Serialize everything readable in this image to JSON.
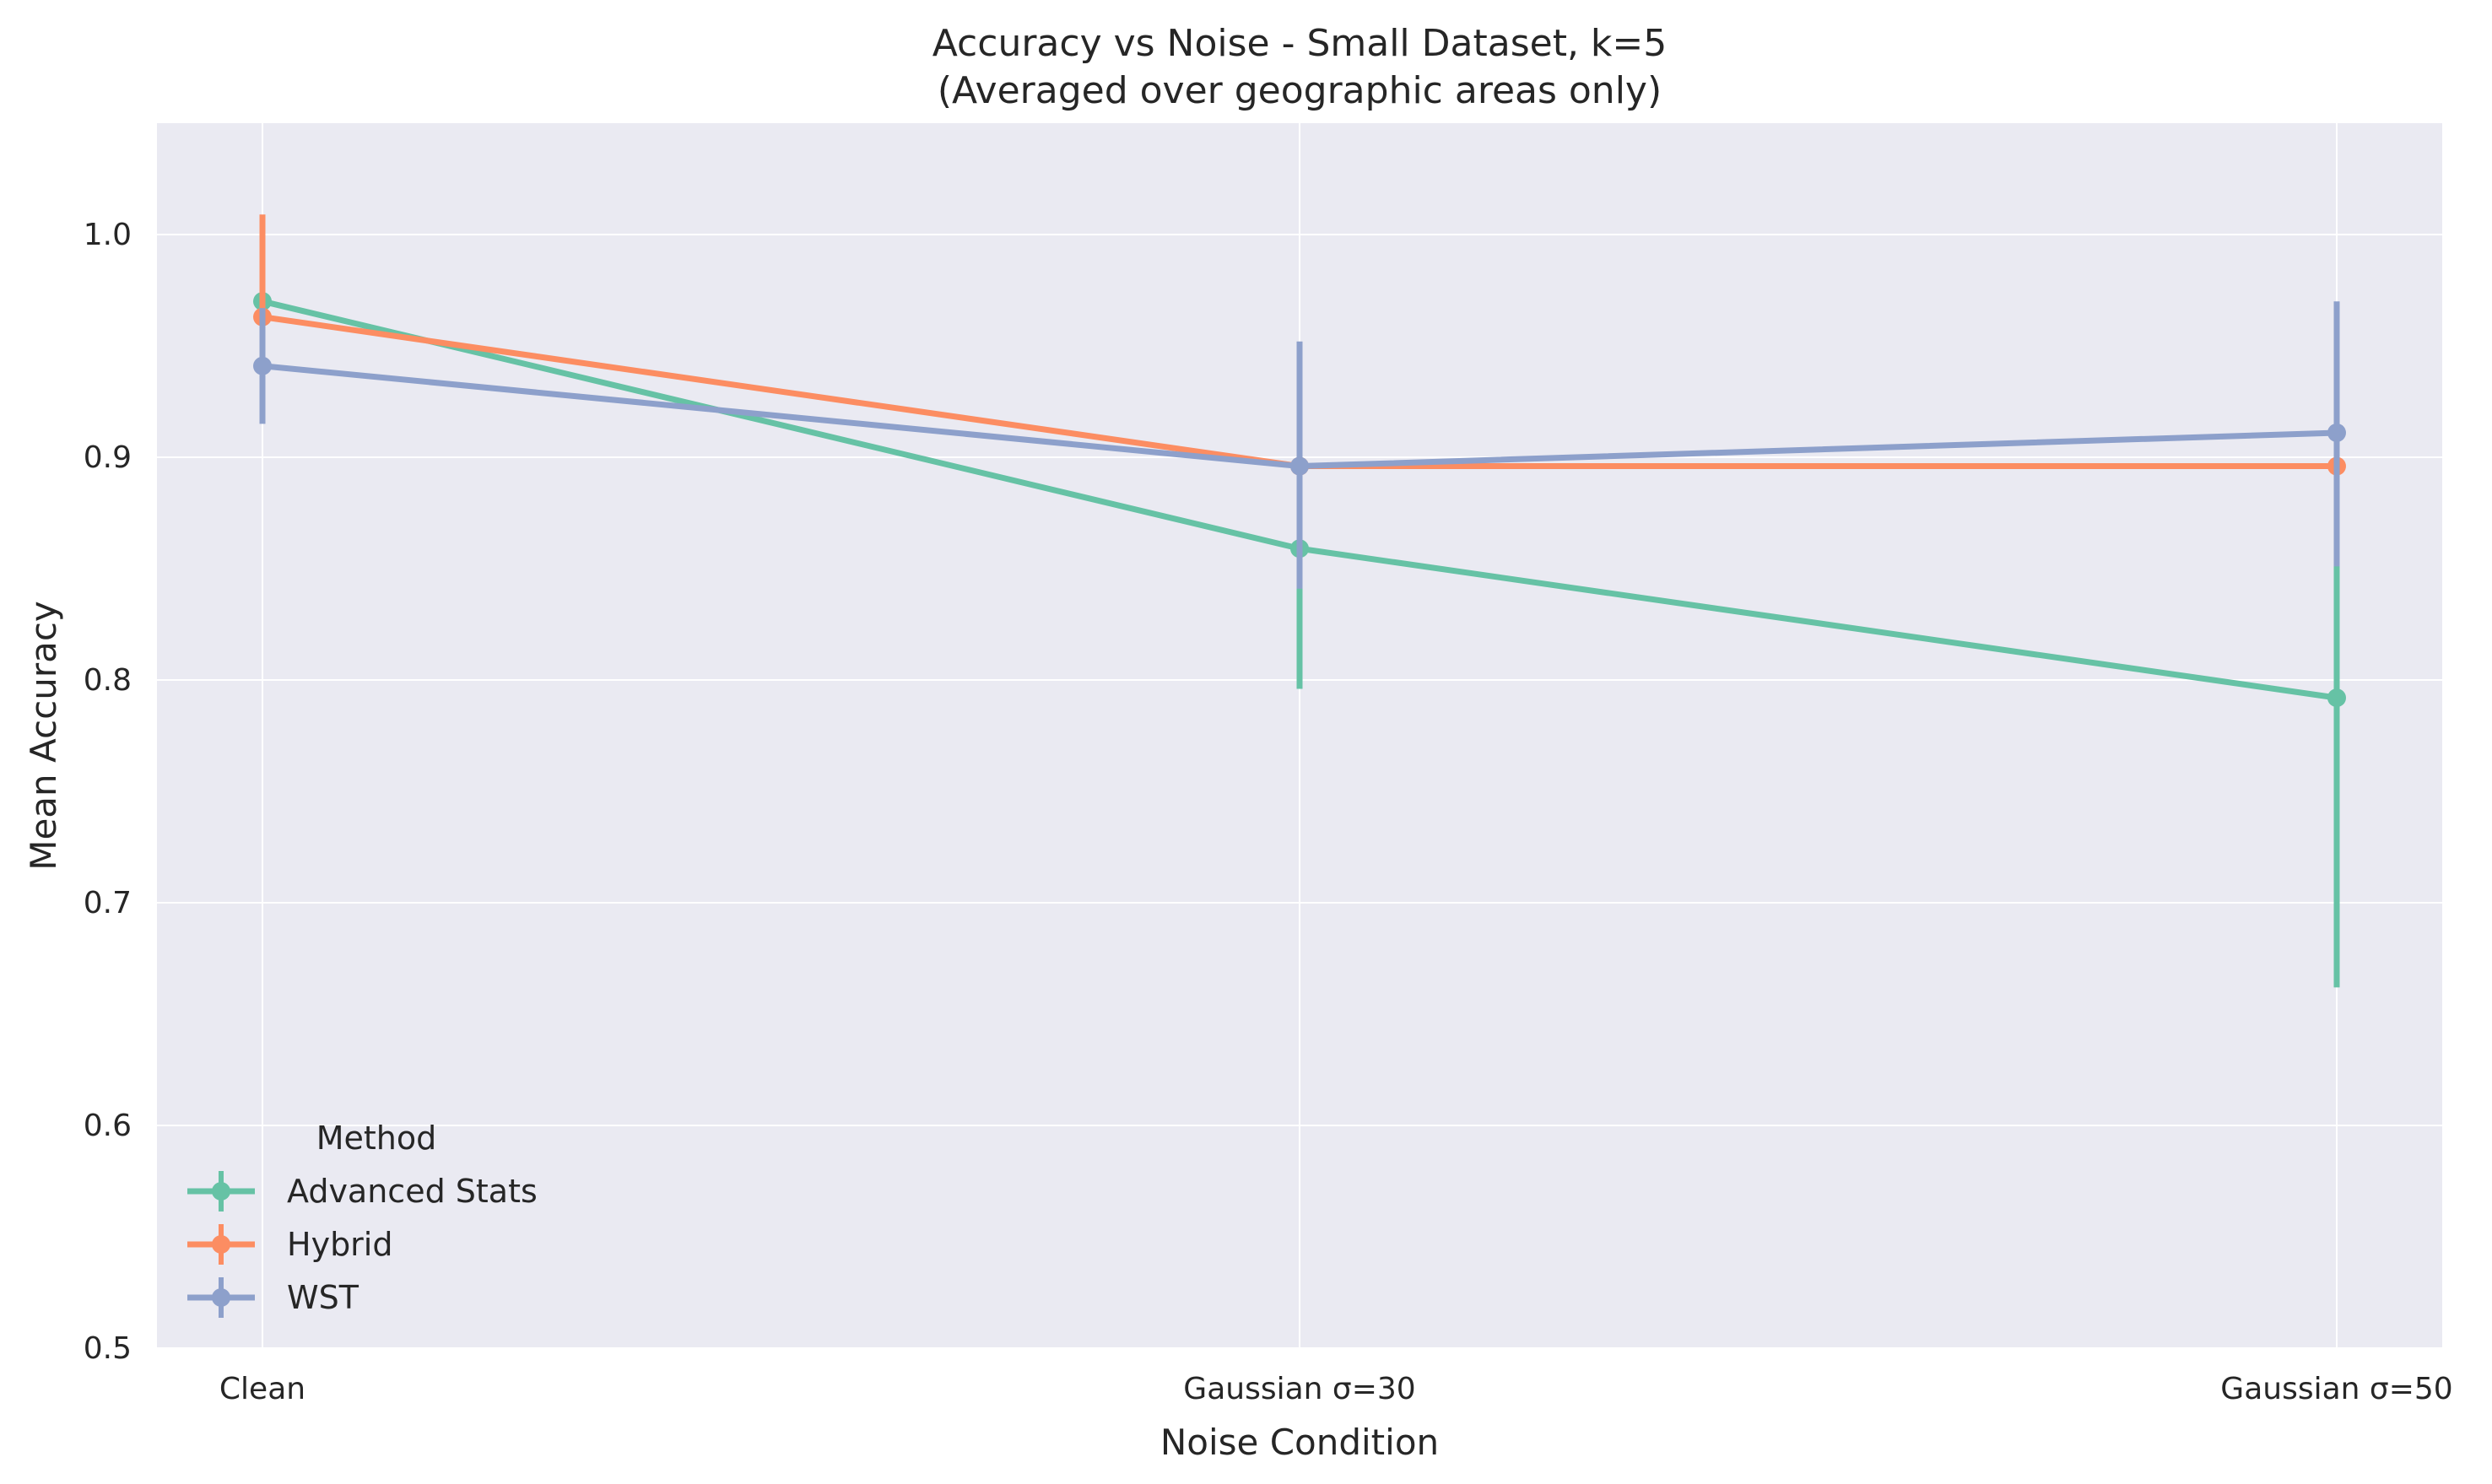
{
  "chart_data": {
    "type": "line",
    "title": "Accuracy vs Noise - Small Dataset, k=5",
    "subtitle": "(Averaged over geographic areas only)",
    "xlabel": "Noise Condition",
    "ylabel": "Mean Accuracy",
    "categories": [
      "Clean",
      "Gaussian σ=30",
      "Gaussian σ=50"
    ],
    "ylim": [
      0.5,
      1.05
    ],
    "yticks": [
      "0.5",
      "0.6",
      "0.7",
      "0.8",
      "0.9",
      "1.0"
    ],
    "grid": true,
    "legend": {
      "title": "Method",
      "position": "lower-left"
    },
    "series": [
      {
        "name": "Advanced Stats",
        "color": "#66c2a5",
        "values": [
          0.97,
          0.859,
          0.792
        ],
        "err_low": [
          0.952,
          0.796,
          0.662
        ],
        "err_high": [
          0.988,
          0.922,
          0.922
        ]
      },
      {
        "name": "Hybrid",
        "color": "#fc8d62",
        "values": [
          0.963,
          0.896,
          0.896
        ],
        "err_low": [
          0.917,
          0.896,
          0.896
        ],
        "err_high": [
          1.009,
          0.896,
          0.896
        ]
      },
      {
        "name": "WST",
        "color": "#8da0cb",
        "values": [
          0.941,
          0.896,
          0.911
        ],
        "err_low": [
          0.915,
          0.841,
          0.851
        ],
        "err_high": [
          0.967,
          0.952,
          0.97
        ]
      }
    ]
  }
}
